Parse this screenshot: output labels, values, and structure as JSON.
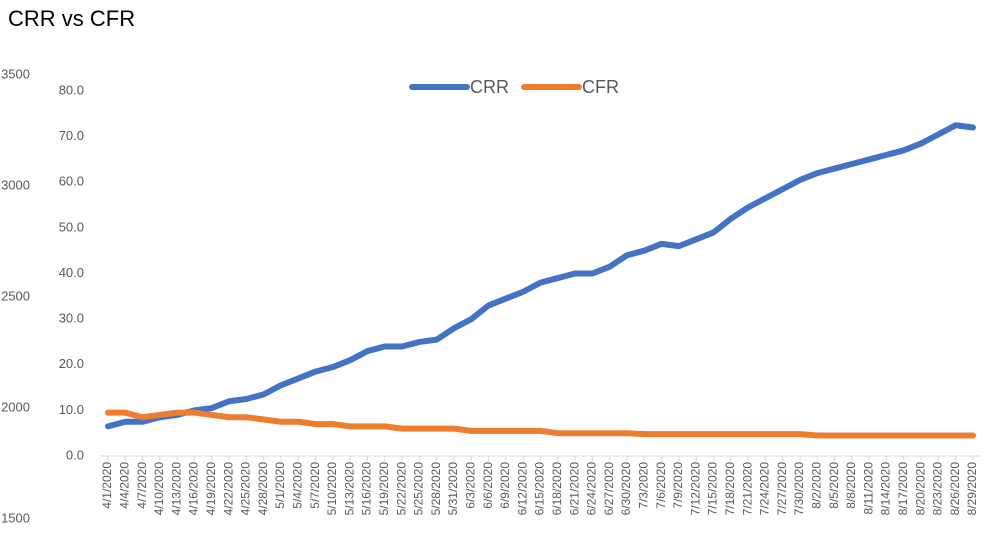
{
  "chart_data": {
    "type": "line",
    "title": "CRR vs CFR",
    "side_fragment_labels": [
      "3500",
      "3000",
      "2500",
      "2000",
      "1500"
    ],
    "categories": [
      "4/1/2020",
      "4/4/2020",
      "4/7/2020",
      "4/10/2020",
      "4/13/2020",
      "4/16/2020",
      "4/19/2020",
      "4/22/2020",
      "4/25/2020",
      "4/28/2020",
      "5/1/2020",
      "5/4/2020",
      "5/7/2020",
      "5/10/2020",
      "5/13/2020",
      "5/16/2020",
      "5/19/2020",
      "5/22/2020",
      "5/25/2020",
      "5/28/2020",
      "5/31/2020",
      "6/3/2020",
      "6/6/2020",
      "6/9/2020",
      "6/12/2020",
      "6/15/2020",
      "6/18/2020",
      "6/21/2020",
      "6/24/2020",
      "6/27/2020",
      "6/30/2020",
      "7/3/2020",
      "7/6/2020",
      "7/9/2020",
      "7/12/2020",
      "7/15/2020",
      "7/18/2020",
      "7/21/2020",
      "7/24/2020",
      "7/27/2020",
      "7/30/2020",
      "8/2/2020",
      "8/5/2020",
      "8/8/2020",
      "8/11/2020",
      "8/14/2020",
      "8/17/2020",
      "8/20/2020",
      "8/23/2020",
      "8/26/2020",
      "8/29/2020"
    ],
    "series": [
      {
        "name": "CRR",
        "color": "#4472c4",
        "values": [
          6.5,
          7.5,
          7.5,
          8.5,
          9,
          10,
          10.5,
          12,
          12.5,
          13.5,
          15.5,
          17,
          18.5,
          19.5,
          21,
          23,
          24,
          24,
          25,
          25.5,
          28,
          30,
          33,
          34.5,
          36,
          38,
          39,
          40,
          40,
          41.5,
          44,
          45,
          46.5,
          46,
          47.5,
          49,
          52,
          54.5,
          56.5,
          58.5,
          60.5,
          62,
          63,
          64,
          65,
          66,
          67,
          68.5,
          70.5,
          72.5,
          72
        ]
      },
      {
        "name": "CFR",
        "color": "#ed7d31",
        "values": [
          9.5,
          9.5,
          8.5,
          9,
          9.5,
          9.5,
          9,
          8.5,
          8.5,
          8,
          7.5,
          7.5,
          7,
          7,
          6.5,
          6.5,
          6.5,
          6,
          6,
          6,
          6,
          5.5,
          5.5,
          5.5,
          5.5,
          5.5,
          5,
          5,
          5,
          5,
          5,
          4.8,
          4.8,
          4.8,
          4.8,
          4.8,
          4.8,
          4.8,
          4.8,
          4.8,
          4.8,
          4.5,
          4.5,
          4.5,
          4.5,
          4.5,
          4.5,
          4.5,
          4.5,
          4.5,
          4.5
        ]
      }
    ],
    "ylim": [
      0,
      80
    ],
    "yticks": [
      {
        "value": 0,
        "label": "0.0"
      },
      {
        "value": 10,
        "label": "10.0"
      },
      {
        "value": 20,
        "label": "20.0"
      },
      {
        "value": 30,
        "label": "30.0"
      },
      {
        "value": 40,
        "label": "40.0"
      },
      {
        "value": 50,
        "label": "50.0"
      },
      {
        "value": 60,
        "label": "60.0"
      },
      {
        "value": 70,
        "label": "70.0"
      },
      {
        "value": 80,
        "label": "80.0"
      }
    ],
    "grid": false,
    "legend": "top"
  }
}
